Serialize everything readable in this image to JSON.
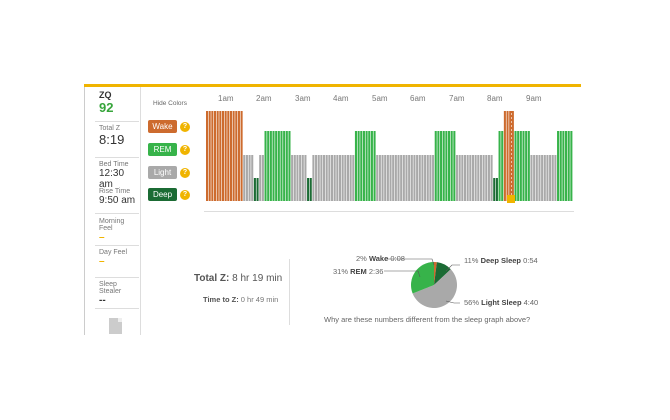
{
  "sidebar": {
    "zq_label": "ZQ",
    "zq_value": "92",
    "total_z_label": "Total Z",
    "total_z_value": "8:19",
    "bed_time_label": "Bed Time",
    "bed_time_value": "12:30 am",
    "rise_time_label": "Rise Time",
    "rise_time_value": "9:50 am",
    "morning_feel_label": "Morning Feel",
    "morning_feel_value": "–",
    "day_feel_label": "Day Feel",
    "day_feel_value": "–",
    "sleep_stealer_label": "Sleep Stealer",
    "sleep_stealer_value": "--"
  },
  "legend": {
    "hide_colors": "Hide Colors",
    "wake": "Wake",
    "rem": "REM",
    "light": "Light",
    "deep": "Deep",
    "help": "?"
  },
  "timeline": [
    "1am",
    "2am",
    "3am",
    "4am",
    "5am",
    "6am",
    "7am",
    "8am",
    "9am"
  ],
  "colors": {
    "wake": "#cd6b2e",
    "rem": "#37b34a",
    "light": "#a9a9a9",
    "deep": "#1b6b34",
    "accent": "#f0b400"
  },
  "summary": {
    "total_label": "Total Z:",
    "total_value": "8 hr 19 min",
    "ttz_label": "Time to Z:",
    "ttz_value": "0 hr 49 min",
    "why_text": "Why are these numbers different from the sleep graph above?"
  },
  "pie": {
    "wake_pct": "2%",
    "wake_label": "Wake",
    "wake_time": "0:08",
    "deep_pct": "11%",
    "deep_label": "Deep Sleep",
    "deep_time": "0:54",
    "rem_pct": "31%",
    "rem_label": "REM",
    "rem_time": "2:36",
    "light_pct": "56%",
    "light_label": "Light Sleep",
    "light_time": "4:40",
    "values": {
      "wake": 2,
      "deep": 11,
      "rem": 31,
      "light": 56
    }
  },
  "sleep_graph": {
    "stages": [
      "wake",
      "wake",
      "wake",
      "wake",
      "wake",
      "wake",
      "wake",
      "light",
      "light",
      "deep",
      "light",
      "rem",
      "rem",
      "rem",
      "rem",
      "rem",
      "light",
      "light",
      "light",
      "deep",
      "light",
      "light",
      "light",
      "light",
      "light",
      "light",
      "light",
      "light",
      "rem",
      "rem",
      "rem",
      "rem",
      "light",
      "light",
      "light",
      "light",
      "light",
      "light",
      "light",
      "light",
      "light",
      "light",
      "light",
      "rem",
      "rem",
      "rem",
      "rem",
      "light",
      "light",
      "light",
      "light",
      "light",
      "light",
      "light",
      "deep",
      "rem",
      "wake",
      "wake",
      "rem",
      "rem",
      "rem",
      "light",
      "light",
      "light",
      "light",
      "light",
      "rem",
      "rem",
      "rem"
    ]
  }
}
